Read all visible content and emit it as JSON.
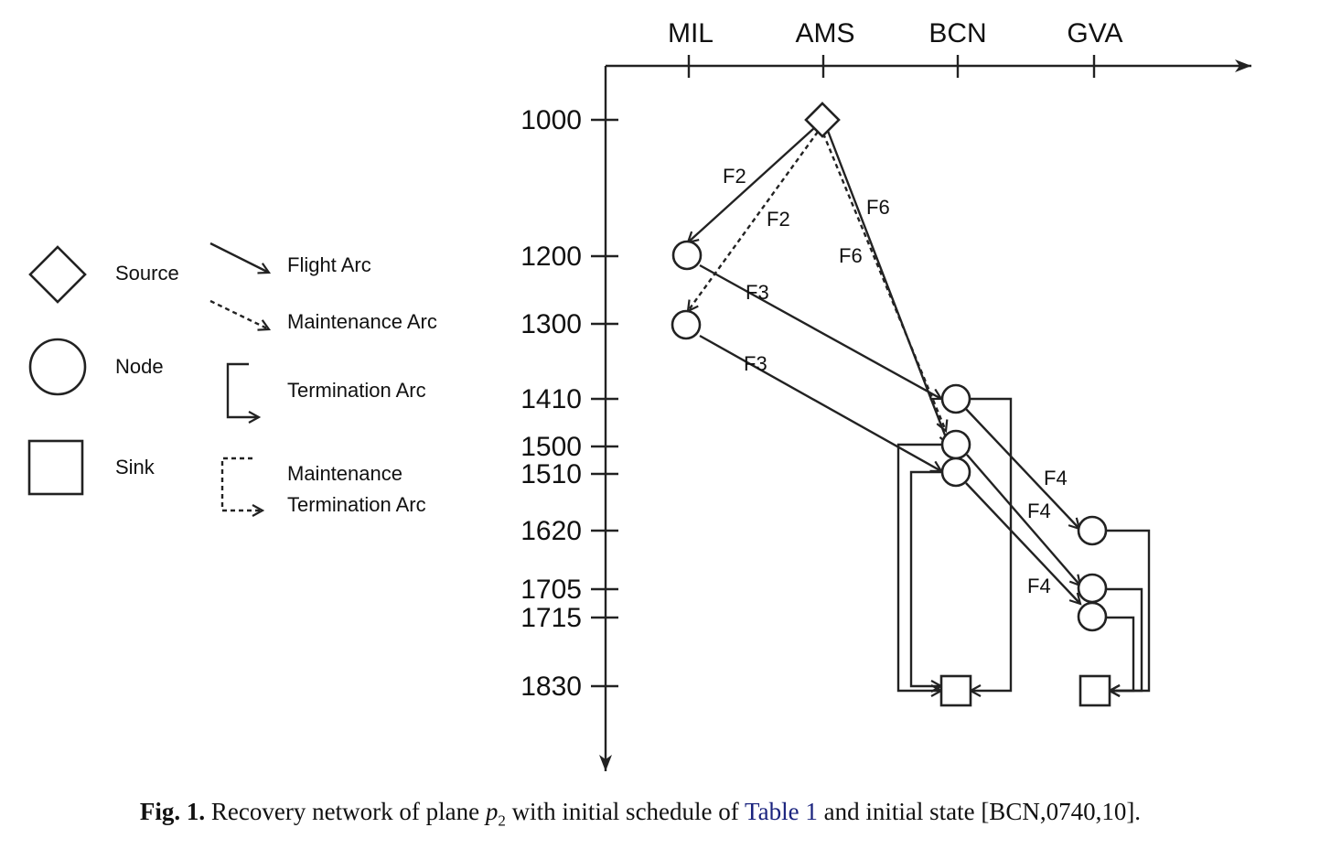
{
  "locations": [
    "MIL",
    "AMS",
    "BCN",
    "GVA"
  ],
  "times": [
    "1000",
    "1200",
    "1300",
    "1410",
    "1500",
    "1510",
    "1620",
    "1705",
    "1715",
    "1830"
  ],
  "legend": {
    "source": "Source",
    "node": "Node",
    "sink": "Sink",
    "flight_arc": "Flight Arc",
    "maintenance_arc": "Maintenance Arc",
    "termination_arc": "Termination Arc",
    "maint_term_line1": "Maintenance",
    "maint_term_line2": "Termination Arc"
  },
  "arc_labels": {
    "f2_flight": "F2",
    "f2_maint": "F2",
    "f6_flight": "F6",
    "f6_maint": "F6",
    "f3_a": "F3",
    "f3_b": "F3",
    "f4_a": "F4",
    "f4_b": "F4",
    "f4_c": "F4"
  },
  "caption": {
    "fig_label": "Fig. 1.",
    "text_before": "Recovery network of plane",
    "symbol": "p",
    "subscript": "2",
    "text_middle": "with initial schedule of",
    "link": "Table 1",
    "text_after": "and initial state [BCN,0740,10]."
  }
}
